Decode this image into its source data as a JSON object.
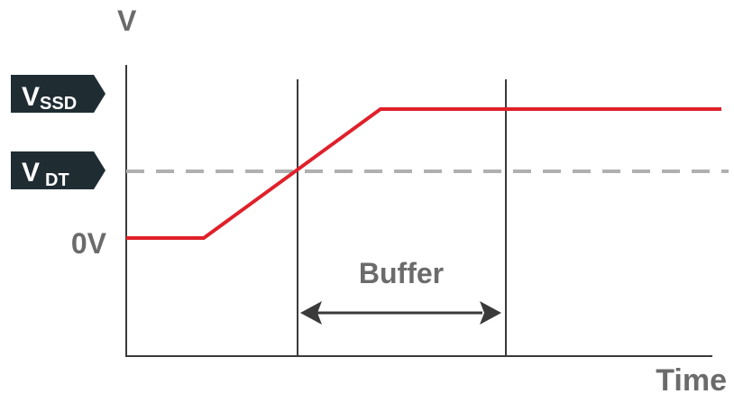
{
  "axes": {
    "y_label": "V",
    "x_label": "Time"
  },
  "levels": {
    "vssd": {
      "main": "V",
      "sub": "SSD"
    },
    "vdt": {
      "main": "V",
      "sub": "DT"
    },
    "zero": "0V"
  },
  "buffer_label": "Buffer",
  "colors": {
    "signal": "#e0202a",
    "threshold_dash": "#b0b0b0",
    "axis": "#3a3a3a",
    "tag_background": "#1f2d33",
    "text": "#6b6b6b"
  }
}
